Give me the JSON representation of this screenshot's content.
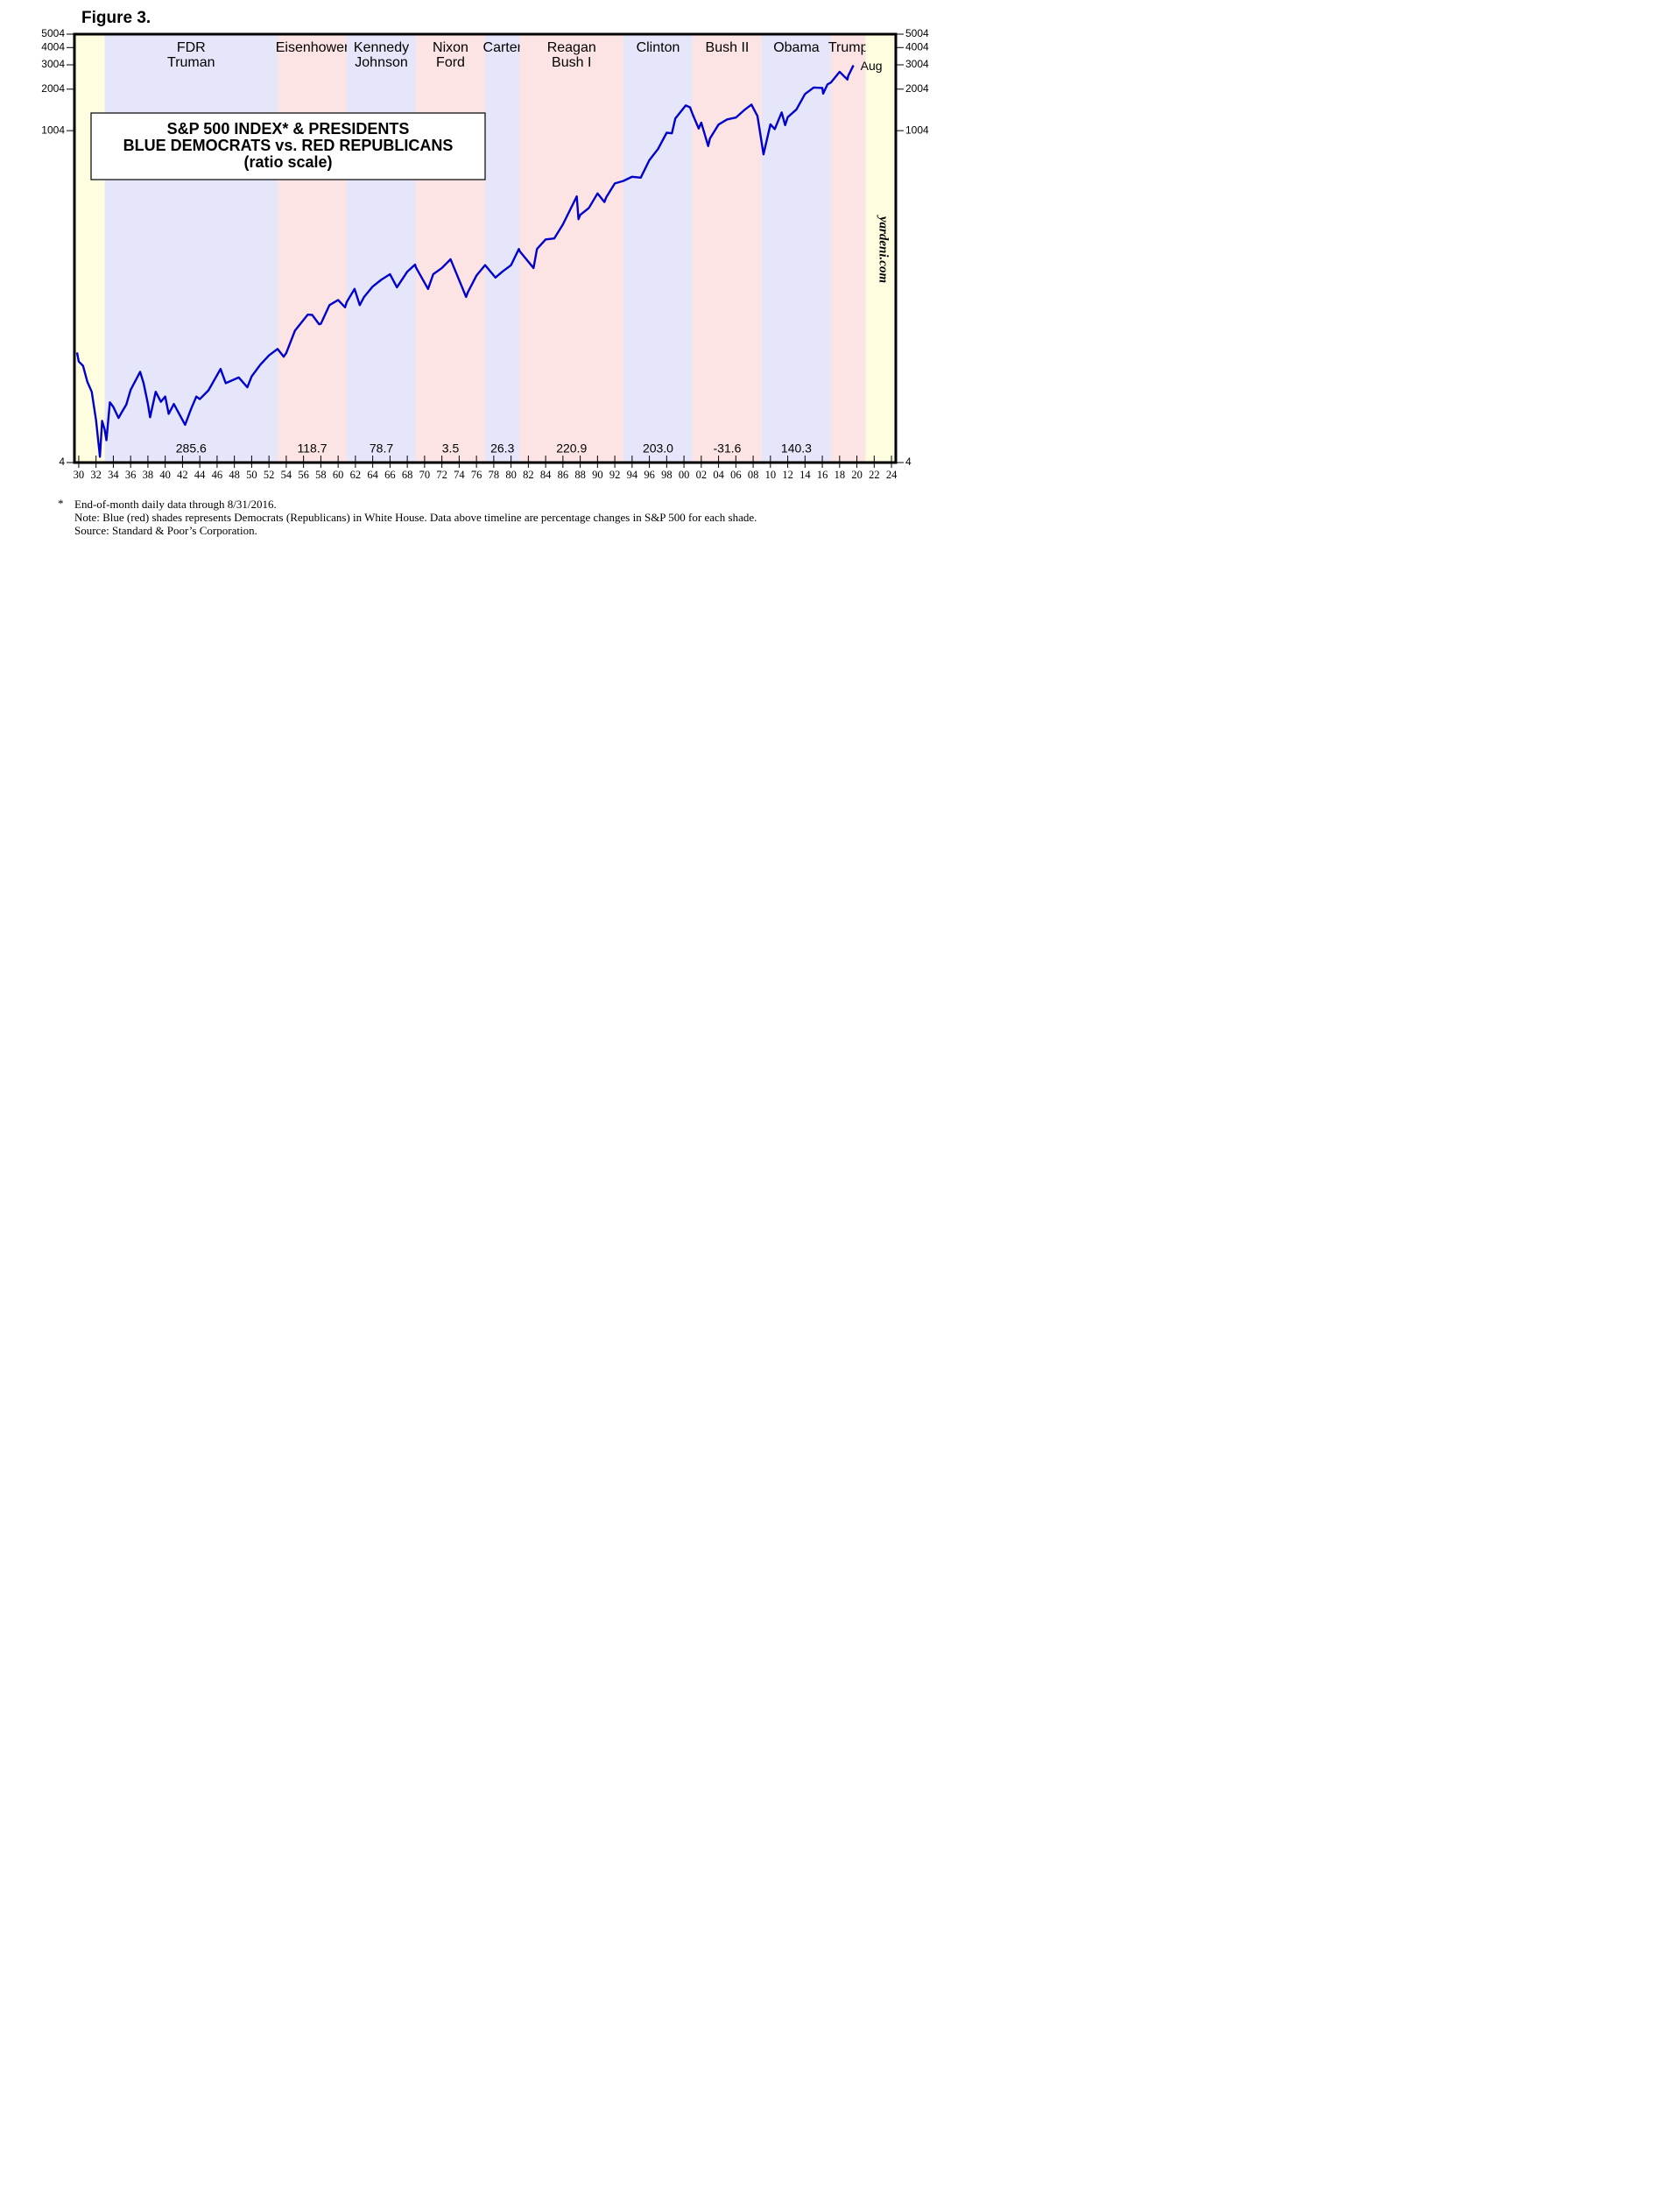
{
  "figure_label": "Figure 3.",
  "chart_data": {
    "type": "line",
    "yscale": "log",
    "color": "#0000cc",
    "box_title": [
      "S&P 500 INDEX* & PRESIDENTS",
      "BLUE DEMOCRATS vs. RED REPUBLICANS",
      "(ratio scale)"
    ],
    "end_label": "Aug",
    "watermark": "yardeni.com",
    "xlim": [
      1929.5,
      2024.5
    ],
    "ylim": [
      4,
      5004
    ],
    "yticks": [
      4,
      1004,
      2004,
      3004,
      4004,
      5004
    ],
    "xticks": [
      {
        "value": 1930,
        "label": "30"
      },
      {
        "value": 1932,
        "label": "32"
      },
      {
        "value": 1934,
        "label": "34"
      },
      {
        "value": 1936,
        "label": "36"
      },
      {
        "value": 1938,
        "label": "38"
      },
      {
        "value": 1940,
        "label": "40"
      },
      {
        "value": 1942,
        "label": "42"
      },
      {
        "value": 1944,
        "label": "44"
      },
      {
        "value": 1946,
        "label": "46"
      },
      {
        "value": 1948,
        "label": "48"
      },
      {
        "value": 1950,
        "label": "50"
      },
      {
        "value": 1952,
        "label": "52"
      },
      {
        "value": 1954,
        "label": "54"
      },
      {
        "value": 1956,
        "label": "56"
      },
      {
        "value": 1958,
        "label": "58"
      },
      {
        "value": 1960,
        "label": "60"
      },
      {
        "value": 1962,
        "label": "62"
      },
      {
        "value": 1964,
        "label": "64"
      },
      {
        "value": 1966,
        "label": "66"
      },
      {
        "value": 1968,
        "label": "68"
      },
      {
        "value": 1970,
        "label": "70"
      },
      {
        "value": 1972,
        "label": "72"
      },
      {
        "value": 1974,
        "label": "74"
      },
      {
        "value": 1976,
        "label": "76"
      },
      {
        "value": 1978,
        "label": "78"
      },
      {
        "value": 1980,
        "label": "80"
      },
      {
        "value": 1982,
        "label": "82"
      },
      {
        "value": 1984,
        "label": "84"
      },
      {
        "value": 1986,
        "label": "86"
      },
      {
        "value": 1988,
        "label": "88"
      },
      {
        "value": 1990,
        "label": "90"
      },
      {
        "value": 1992,
        "label": "92"
      },
      {
        "value": 1994,
        "label": "94"
      },
      {
        "value": 1996,
        "label": "96"
      },
      {
        "value": 1998,
        "label": "98"
      },
      {
        "value": 2000,
        "label": "00"
      },
      {
        "value": 2002,
        "label": "02"
      },
      {
        "value": 2004,
        "label": "04"
      },
      {
        "value": 2006,
        "label": "06"
      },
      {
        "value": 2008,
        "label": "08"
      },
      {
        "value": 2010,
        "label": "10"
      },
      {
        "value": 2012,
        "label": "12"
      },
      {
        "value": 2014,
        "label": "14"
      },
      {
        "value": 2016,
        "label": "16"
      },
      {
        "value": 2018,
        "label": "18"
      },
      {
        "value": 2020,
        "label": "20"
      },
      {
        "value": 2022,
        "label": "22"
      },
      {
        "value": 2024,
        "label": "24"
      }
    ],
    "periods": [
      {
        "start": 1929.5,
        "end": 1933,
        "color": "#fffde0"
      },
      {
        "start": 1933,
        "end": 1953,
        "color": "#e6e6fa",
        "names": [
          "FDR",
          "Truman"
        ],
        "value": 285.6,
        "value_label": "285.6"
      },
      {
        "start": 1953,
        "end": 1961,
        "color": "#fde4e4",
        "names": [
          "Eisenhower"
        ],
        "value": 118.7,
        "value_label": "118.7"
      },
      {
        "start": 1961,
        "end": 1969,
        "color": "#e6e6fa",
        "names": [
          "Kennedy",
          "Johnson"
        ],
        "value": 78.7,
        "value_label": "78.7"
      },
      {
        "start": 1969,
        "end": 1977,
        "color": "#fde4e4",
        "names": [
          "Nixon",
          "Ford"
        ],
        "value": 3.5,
        "value_label": "3.5"
      },
      {
        "start": 1977,
        "end": 1981,
        "color": "#e6e6fa",
        "names": [
          "Carter"
        ],
        "value": 26.3,
        "value_label": "26.3"
      },
      {
        "start": 1981,
        "end": 1993,
        "color": "#fde4e4",
        "names": [
          "Reagan",
          "Bush I"
        ],
        "value": 220.9,
        "value_label": "220.9"
      },
      {
        "start": 1993,
        "end": 2001,
        "color": "#e6e6fa",
        "names": [
          "Clinton"
        ],
        "value": 203,
        "value_label": "203.0"
      },
      {
        "start": 2001,
        "end": 2009,
        "color": "#fde4e4",
        "names": [
          "Bush II"
        ],
        "value": -31.6,
        "value_label": "-31.6"
      },
      {
        "start": 2009,
        "end": 2017,
        "color": "#e6e6fa",
        "names": [
          "Obama"
        ],
        "value": 140.3,
        "value_label": "140.3"
      },
      {
        "start": 2017,
        "end": 2021,
        "color": "#fde4e4",
        "names": [
          "Trump"
        ]
      },
      {
        "start": 2021,
        "end": 2024.5,
        "color": "#fffde0"
      }
    ],
    "x": [
      1929.8,
      1930.0,
      1930.5,
      1931.0,
      1931.5,
      1932.0,
      1932.45,
      1932.7,
      1933.0,
      1933.2,
      1933.6,
      1934.0,
      1934.6,
      1935.0,
      1935.5,
      1936.0,
      1937.1,
      1937.5,
      1938.0,
      1938.25,
      1938.9,
      1939.5,
      1940.0,
      1940.4,
      1941.0,
      1942.3,
      1943.0,
      1943.6,
      1944.0,
      1945.0,
      1946.4,
      1947.0,
      1948.5,
      1949.5,
      1950.0,
      1951.0,
      1952.0,
      1953.0,
      1953.7,
      1954.0,
      1955.0,
      1956.5,
      1957.0,
      1957.8,
      1958.0,
      1959.0,
      1960.0,
      1960.8,
      1961.0,
      1961.9,
      1962.5,
      1963.0,
      1964.0,
      1965.0,
      1966.0,
      1966.8,
      1968.0,
      1968.9,
      1969.0,
      1970.4,
      1971.0,
      1972.0,
      1973.0,
      1974.8,
      1975.0,
      1976.0,
      1977.0,
      1978.2,
      1979.0,
      1980.0,
      1980.9,
      1981.0,
      1982.6,
      1983.0,
      1984.0,
      1985.0,
      1986.0,
      1987.6,
      1987.8,
      1988.0,
      1989.0,
      1990.0,
      1990.8,
      1991.0,
      1992.0,
      1993.0,
      1994.0,
      1995.0,
      1996.0,
      1997.0,
      1998.0,
      1998.6,
      1999.0,
      2000.2,
      2000.7,
      2001.0,
      2001.7,
      2002.0,
      2002.8,
      2003.0,
      2004.0,
      2005.0,
      2006.0,
      2007.0,
      2007.8,
      2008.0,
      2008.5,
      2009.2,
      2010.0,
      2010.5,
      2011.3,
      2011.7,
      2012.0,
      2013.0,
      2014.0,
      2015.0,
      2016.0,
      2016.1,
      2016.6,
      2017.0,
      2018.0,
      2018.9,
      2019.0,
      2019.6
    ],
    "values": [
      25,
      21.5,
      20,
      15.3,
      13,
      8.1,
      4.4,
      8,
      6.9,
      5.8,
      10.9,
      10.1,
      8.4,
      9.3,
      10.5,
      13.4,
      18.1,
      15,
      10.6,
      8.5,
      13,
      11,
      12,
      9,
      10.6,
      7.5,
      9.8,
      12,
      11.5,
      13.3,
      19,
      15,
      16.5,
      14,
      16.8,
      20.4,
      23.8,
      26.5,
      23.3,
      24.8,
      35.9,
      47,
      46.7,
      40,
      40.3,
      55,
      59.9,
      53,
      58,
      72,
      55,
      63,
      75,
      84,
      92,
      74,
      96,
      108,
      103,
      72,
      92,
      102,
      118,
      63,
      68,
      90,
      107,
      87,
      96,
      107,
      140,
      135,
      102,
      140,
      164,
      167,
      211,
      336,
      230,
      247,
      277,
      353,
      306,
      330,
      417,
      435,
      466,
      459,
      615,
      740,
      970,
      960,
      1229,
      1527,
      1480,
      1320,
      1040,
      1148,
      777,
      880,
      1111,
      1211,
      1248,
      1418,
      1549,
      1468,
      1280,
      677,
      1115,
      1030,
      1360,
      1100,
      1257,
      1426,
      1848,
      2058,
      2043,
      1860,
      2170,
      2238,
      2673,
      2350,
      2500,
      2980
    ]
  },
  "notes": {
    "marker": "*",
    "lines": [
      "End-of-month daily data through 8/31/2016.",
      "Note: Blue (red) shades represents Democrats (Republicans) in White House. Data above timeline are percentage changes in S&P 500 for each shade.",
      "Source: Standard & Poor’s Corporation."
    ]
  }
}
